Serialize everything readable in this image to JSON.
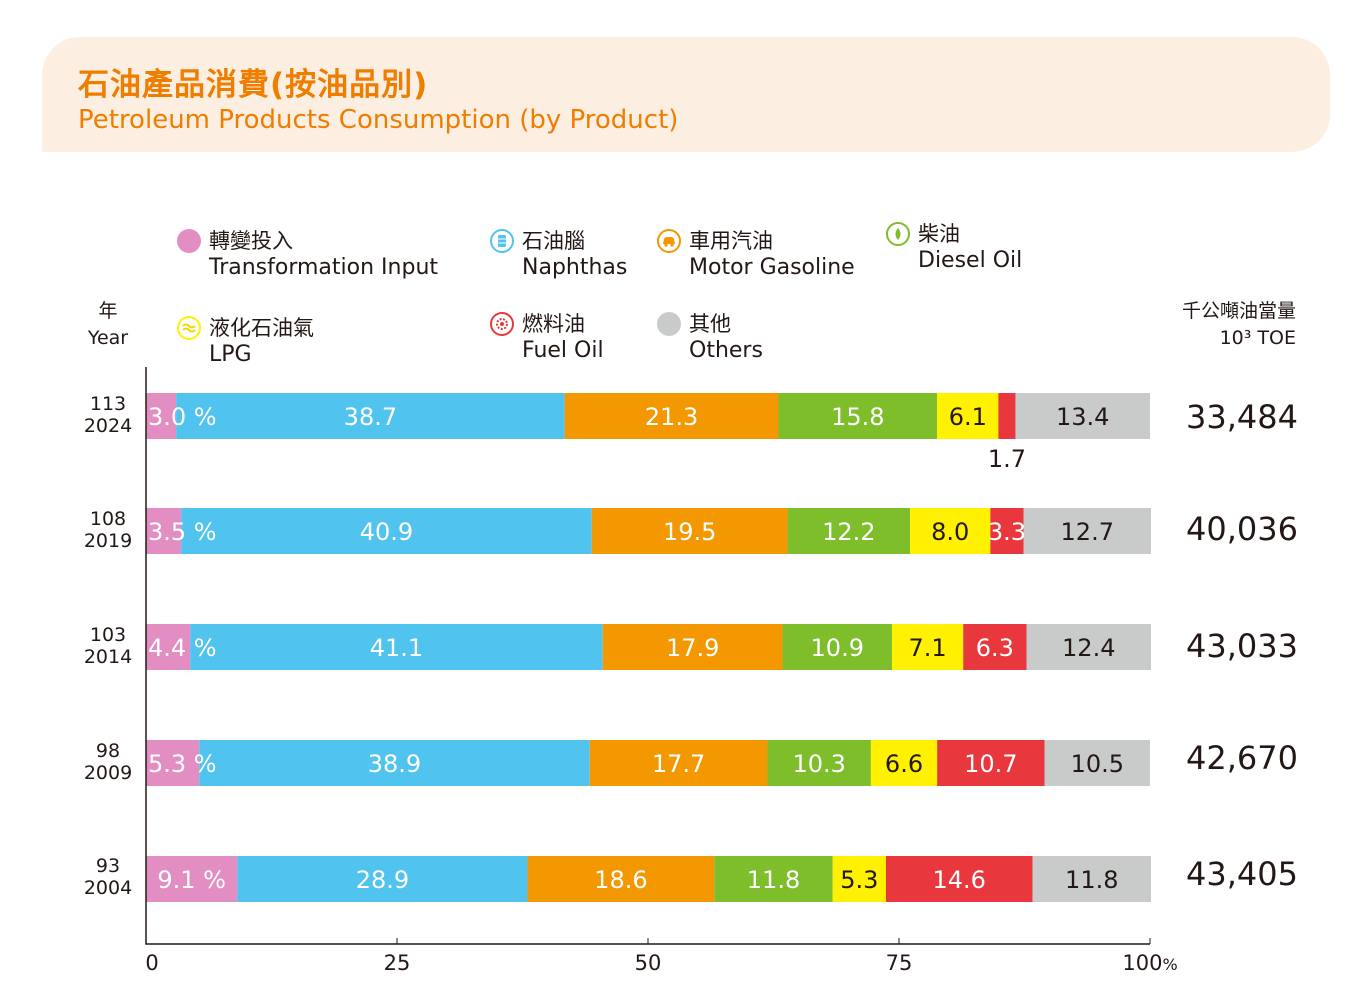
{
  "title_zh": "石油產品消費(按油品別)",
  "title_en": "Petroleum Products Consumption (by Product)",
  "legend": [
    {
      "zh": "轉變投入",
      "en": "Transformation Input",
      "color": "#e38ec2",
      "icon": "pink-dot-icon"
    },
    {
      "zh": "石油腦",
      "en": "Naphthas",
      "color": "#51c3ef",
      "icon": "naphtha-barrel-icon"
    },
    {
      "zh": "車用汽油",
      "en": "Motor Gasoline",
      "color": "#f39800",
      "icon": "car-icon"
    },
    {
      "zh": "柴油",
      "en": "Diesel Oil",
      "color": "#7dbe2a",
      "icon": "leaf-drop-icon"
    },
    {
      "zh": "液化石油氣",
      "en": "LPG",
      "color": "#fff100",
      "icon": "gas-wave-icon"
    },
    {
      "zh": "燃料油",
      "en": "Fuel Oil",
      "color": "#e8383d",
      "icon": "flame-gear-icon"
    },
    {
      "zh": "其他",
      "en": "Others",
      "color": "#c9caca",
      "icon": "gray-dot-icon"
    }
  ],
  "year_header": {
    "zh": "年",
    "en": "Year"
  },
  "unit": {
    "zh": "千公噸油當量",
    "en": "10³ TOE"
  },
  "rows": [
    {
      "roc": "113",
      "year": "2024",
      "total": "33,484"
    },
    {
      "roc": "108",
      "year": "2019",
      "total": "40,036"
    },
    {
      "roc": "103",
      "year": "2014",
      "total": "43,033"
    },
    {
      "roc": "98",
      "year": "2009",
      "total": "42,670"
    },
    {
      "roc": "93",
      "year": "2004",
      "total": "43,405"
    }
  ],
  "chart_data": {
    "type": "bar",
    "orientation": "horizontal",
    "stacked": true,
    "percent_stacked": true,
    "categories": [
      "113 2024",
      "108 2019",
      "103 2014",
      "98 2009",
      "93 2004"
    ],
    "series": [
      {
        "name": "轉變投入 Transformation Input",
        "values": [
          3.0,
          3.5,
          4.4,
          5.3,
          9.1
        ],
        "labels": [
          "3.0 %",
          "3.5 %",
          "4.4 %",
          "5.3 %",
          "9.1 %"
        ]
      },
      {
        "name": "石油腦 Naphthas",
        "values": [
          38.7,
          40.9,
          41.1,
          38.9,
          28.9
        ],
        "labels": [
          "38.7",
          "40.9",
          "41.1",
          "38.9",
          "28.9"
        ]
      },
      {
        "name": "車用汽油 Motor Gasoline",
        "values": [
          21.3,
          19.5,
          17.9,
          17.7,
          18.6
        ],
        "labels": [
          "21.3",
          "19.5",
          "17.9",
          "17.7",
          "18.6"
        ]
      },
      {
        "name": "柴油 Diesel Oil",
        "values": [
          15.8,
          12.2,
          10.9,
          10.3,
          11.8
        ],
        "labels": [
          "15.8",
          "12.2",
          "10.9",
          "10.3",
          "11.8"
        ]
      },
      {
        "name": "液化石油氣 LPG",
        "values": [
          6.1,
          8.0,
          7.1,
          6.6,
          5.3
        ],
        "labels": [
          "6.1",
          "8.0",
          "7.1",
          "6.6",
          "5.3"
        ]
      },
      {
        "name": "燃料油 Fuel Oil",
        "values": [
          1.7,
          3.3,
          6.3,
          10.7,
          14.6
        ],
        "labels": [
          "1.7",
          "3.3",
          "6.3",
          "10.7",
          "14.6"
        ]
      },
      {
        "name": "其他 Others",
        "values": [
          13.4,
          12.7,
          12.4,
          10.5,
          11.8
        ],
        "labels": [
          "13.4",
          "12.7",
          "12.4",
          "10.5",
          "11.8"
        ]
      }
    ],
    "xlim": [
      0,
      100
    ],
    "xticks": [
      "0",
      "25",
      "50",
      "75",
      "100"
    ],
    "xtick_suffix": "%",
    "grid": false
  }
}
